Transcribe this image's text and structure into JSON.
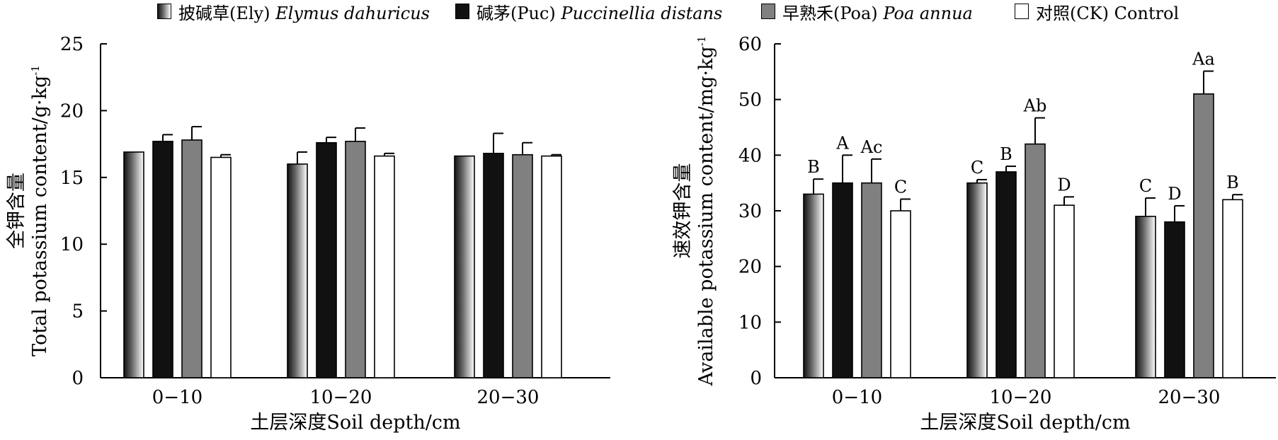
{
  "legend": [
    {
      "key": "Ely",
      "label_cn": "披碱草(Ely)",
      "label_sp": "Elymus dahuricus",
      "color": "gradient"
    },
    {
      "key": "Puc",
      "label_cn": "碱茅(Puc)",
      "label_sp": "Puccinellia distans",
      "color": "#111111"
    },
    {
      "key": "Poa",
      "label_cn": "早熟禾(Poa)",
      "label_sp": "Poa annua",
      "color": "#808080"
    },
    {
      "key": "CK",
      "label_cn": "对照(CK)",
      "label_sp": "Control",
      "color": "#ffffff"
    }
  ],
  "chart_data": [
    {
      "type": "bar",
      "categories": [
        "0−10",
        "10−20",
        "20−30"
      ],
      "series": [
        {
          "name": "披碱草(Ely) Elymus dahuricus",
          "values": [
            16.9,
            16.0,
            16.6
          ],
          "errors": [
            0,
            0.9,
            0
          ]
        },
        {
          "name": "碱茅(Puc) Puccinellia distans",
          "values": [
            17.7,
            17.6,
            16.8
          ],
          "errors": [
            0.5,
            0.4,
            1.5
          ]
        },
        {
          "name": "早熟禾(Poa) Poa annua",
          "values": [
            17.8,
            17.7,
            16.7
          ],
          "errors": [
            1.0,
            1.0,
            0.9
          ]
        },
        {
          "name": "对照(CK) Control",
          "values": [
            16.5,
            16.6,
            16.6
          ],
          "errors": [
            0.2,
            0.2,
            0.1
          ]
        }
      ],
      "ylabel_cn": "全钾含量",
      "ylabel_en": "Total potassium content/g·kg",
      "ylabel_sup": "-1",
      "xlabel": "土层深度Soil depth/cm",
      "ylim": [
        0,
        25
      ],
      "yticks": [
        "0",
        "5",
        "10",
        "15",
        "20",
        "25"
      ]
    },
    {
      "type": "bar",
      "categories": [
        "0−10",
        "10−20",
        "20−30"
      ],
      "series": [
        {
          "name": "披碱草(Ely) Elymus dahuricus",
          "values": [
            33,
            35,
            29
          ],
          "errors": [
            2.7,
            0.6,
            3.3
          ],
          "labels": [
            "B",
            "C",
            "C"
          ]
        },
        {
          "name": "碱茅(Puc) Puccinellia distans",
          "values": [
            35,
            37,
            28
          ],
          "errors": [
            5.0,
            1.0,
            2.9
          ],
          "labels": [
            "A",
            "B",
            "D"
          ]
        },
        {
          "name": "早熟禾(Poa) Poa annua",
          "values": [
            35,
            42,
            51
          ],
          "errors": [
            4.3,
            4.7,
            4.1
          ],
          "labels": [
            "Ac",
            "Ab",
            "Aa"
          ]
        },
        {
          "name": "对照(CK) Control",
          "values": [
            30,
            31,
            32
          ],
          "errors": [
            2.1,
            1.5,
            0.9
          ],
          "labels": [
            "C",
            "D",
            "B"
          ]
        }
      ],
      "ylabel_cn": "速效钾含量",
      "ylabel_en": "Available potassium content/mg·kg",
      "ylabel_sup": "-1",
      "xlabel": "土层深度Soil depth/cm",
      "ylim": [
        0,
        60
      ],
      "yticks": [
        "0",
        "10",
        "20",
        "30",
        "40",
        "50",
        "60"
      ]
    }
  ]
}
